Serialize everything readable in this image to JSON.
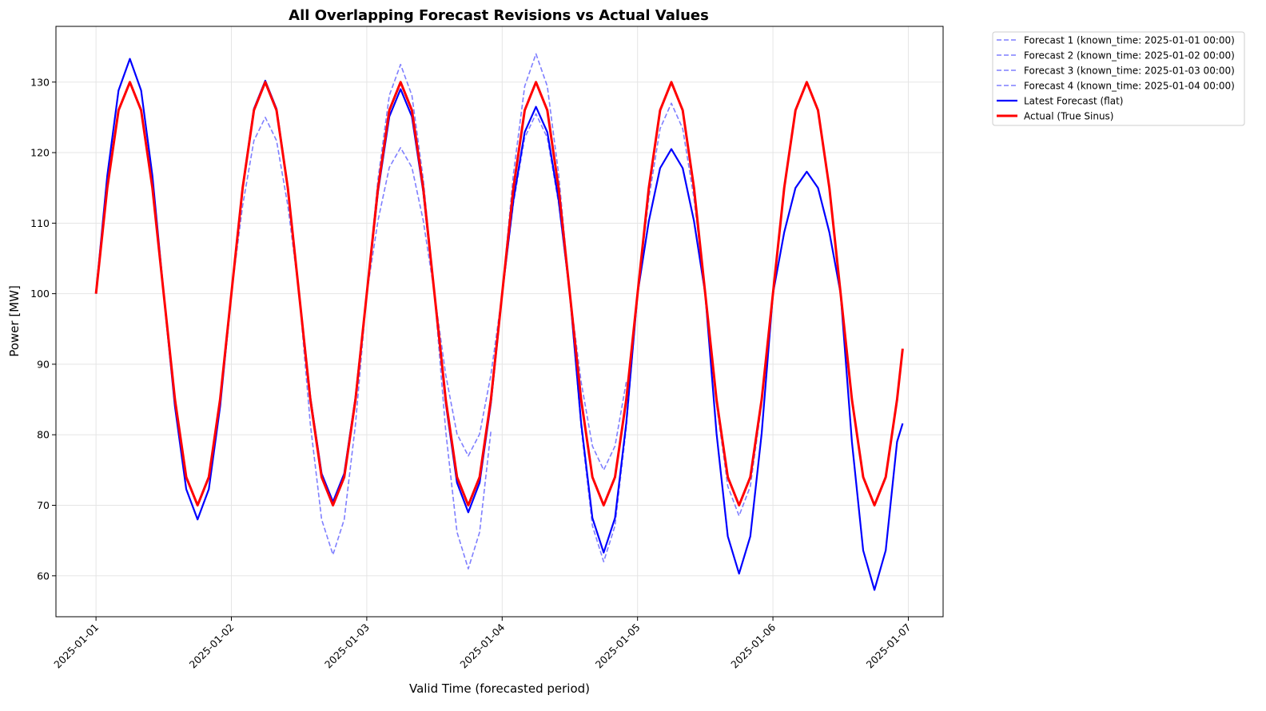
{
  "chart_data": {
    "type": "line",
    "title": "All Overlapping Forecast Revisions vs Actual Values",
    "xlabel": "Valid Time (forecasted period)",
    "ylabel": "Power [MW]",
    "xlim": [
      "2024-12-31 16:54",
      "2025-01-07 06:10"
    ],
    "ylim": [
      54.2,
      137.9
    ],
    "xticks": [
      "2025-01-01",
      "2025-01-02",
      "2025-01-03",
      "2025-01-04",
      "2025-01-05",
      "2025-01-06",
      "2025-01-07"
    ],
    "yticks": [
      60,
      70,
      80,
      90,
      100,
      110,
      120,
      130
    ],
    "grid": true,
    "legend_position": "outside-top-right",
    "x": [
      "2025-01-01 00:00",
      "2025-01-01 02:00",
      "2025-01-01 04:00",
      "2025-01-01 06:00",
      "2025-01-01 08:00",
      "2025-01-01 10:00",
      "2025-01-01 12:00",
      "2025-01-01 14:00",
      "2025-01-01 16:00",
      "2025-01-01 18:00",
      "2025-01-01 20:00",
      "2025-01-01 22:00",
      "2025-01-02 00:00",
      "2025-01-02 02:00",
      "2025-01-02 04:00",
      "2025-01-02 06:00",
      "2025-01-02 08:00",
      "2025-01-02 10:00",
      "2025-01-02 12:00",
      "2025-01-02 14:00",
      "2025-01-02 16:00",
      "2025-01-02 18:00",
      "2025-01-02 20:00",
      "2025-01-02 22:00",
      "2025-01-03 00:00",
      "2025-01-03 02:00",
      "2025-01-03 04:00",
      "2025-01-03 06:00",
      "2025-01-03 08:00",
      "2025-01-03 10:00",
      "2025-01-03 12:00",
      "2025-01-03 14:00",
      "2025-01-03 16:00",
      "2025-01-03 18:00",
      "2025-01-03 20:00",
      "2025-01-03 22:00",
      "2025-01-04 00:00",
      "2025-01-04 02:00",
      "2025-01-04 04:00",
      "2025-01-04 06:00",
      "2025-01-04 08:00",
      "2025-01-04 10:00",
      "2025-01-04 12:00",
      "2025-01-04 14:00",
      "2025-01-04 16:00",
      "2025-01-04 18:00",
      "2025-01-04 20:00",
      "2025-01-04 22:00",
      "2025-01-05 00:00",
      "2025-01-05 02:00",
      "2025-01-05 04:00",
      "2025-01-05 06:00",
      "2025-01-05 08:00",
      "2025-01-05 10:00",
      "2025-01-05 12:00",
      "2025-01-05 14:00",
      "2025-01-05 16:00",
      "2025-01-05 18:00",
      "2025-01-05 20:00",
      "2025-01-05 22:00",
      "2025-01-06 00:00",
      "2025-01-06 02:00",
      "2025-01-06 04:00",
      "2025-01-06 06:00",
      "2025-01-06 08:00",
      "2025-01-06 10:00",
      "2025-01-06 12:00",
      "2025-01-06 14:00",
      "2025-01-06 16:00",
      "2025-01-06 18:00",
      "2025-01-06 20:00",
      "2025-01-06 22:00",
      "2025-01-06 23:00"
    ],
    "series": [
      {
        "name": "Forecast 1 (known_time: 2025-01-01 00:00)",
        "color": "#7f7fff",
        "style": "dashed",
        "values": [
          100,
          116.7,
          128.8,
          133.3,
          128.8,
          116.7,
          100,
          84,
          72.3,
          68,
          72.3,
          84,
          100,
          112.5,
          121.7,
          125,
          121.7,
          112.5,
          100,
          81.5,
          68,
          63,
          68,
          81.5,
          100,
          110.4,
          117.9,
          120.7,
          117.9,
          110.4,
          100,
          80.5,
          66.2,
          61,
          66.2,
          80.5,
          null,
          null,
          null,
          null,
          null,
          null,
          null,
          null,
          null,
          null,
          null,
          null,
          null,
          null,
          null,
          null,
          null,
          null,
          null,
          null,
          null,
          null,
          null,
          null,
          null,
          null,
          null,
          null,
          null,
          null,
          null,
          null,
          null,
          null,
          null,
          null,
          null
        ]
      },
      {
        "name": "Forecast 2 (known_time: 2025-01-02 00:00)",
        "color": "#7f7fff",
        "style": "dashed",
        "values": [
          null,
          null,
          null,
          null,
          null,
          null,
          null,
          null,
          null,
          null,
          null,
          null,
          100,
          115.1,
          126.2,
          130.2,
          126.2,
          115.1,
          100,
          85.3,
          74.5,
          70.5,
          74.5,
          85.3,
          100,
          116.3,
          128.1,
          132.5,
          128.1,
          116.3,
          100,
          88.5,
          80.1,
          77,
          80.1,
          88.5,
          100,
          117,
          129.4,
          134,
          129.4,
          117,
          100,
          87.5,
          78.4,
          75,
          78.4,
          87.5,
          null,
          null,
          null,
          null,
          null,
          null,
          null,
          null,
          null,
          null,
          null,
          null,
          null,
          null,
          null,
          null,
          null,
          null,
          null,
          null,
          null,
          null,
          null,
          null,
          null
        ]
      },
      {
        "name": "Forecast 3 (known_time: 2025-01-03 00:00)",
        "color": "#7f7fff",
        "style": "dashed",
        "values": [
          null,
          null,
          null,
          null,
          null,
          null,
          null,
          null,
          null,
          null,
          null,
          null,
          null,
          null,
          null,
          null,
          null,
          null,
          null,
          null,
          null,
          null,
          null,
          null,
          100,
          114.5,
          125.1,
          129,
          125.1,
          114.5,
          100,
          84.5,
          73.2,
          69,
          73.2,
          84.5,
          100,
          112.8,
          122.1,
          125.5,
          122.1,
          112.8,
          100,
          81,
          67.1,
          62,
          67.1,
          81,
          100,
          113.5,
          123.4,
          127,
          123.4,
          113.5,
          100,
          84.3,
          72.7,
          68.5,
          72.7,
          84.3,
          null,
          null,
          null,
          null,
          null,
          null,
          null,
          null,
          null,
          null,
          null,
          null,
          null
        ]
      },
      {
        "name": "Forecast 4 (known_time: 2025-01-04 00:00)",
        "color": "#7f7fff",
        "style": "dashed",
        "values": [
          null,
          null,
          null,
          null,
          null,
          null,
          null,
          null,
          null,
          null,
          null,
          null,
          null,
          null,
          null,
          null,
          null,
          null,
          null,
          null,
          null,
          null,
          null,
          null,
          null,
          null,
          null,
          null,
          null,
          null,
          null,
          null,
          null,
          null,
          null,
          null,
          100,
          113.3,
          122.9,
          126.5,
          122.9,
          113.3,
          100,
          81.7,
          68.2,
          63.3,
          68.2,
          81.7,
          100,
          110.3,
          117.8,
          120.5,
          117.8,
          110.3,
          100,
          80.2,
          65.6,
          60.3,
          65.6,
          80.2,
          100,
          108.7,
          115,
          117.3,
          115,
          108.7,
          100,
          79,
          63.6,
          58,
          63.6,
          79,
          81.6
        ]
      },
      {
        "name": "Latest Forecast (flat)",
        "color": "#0000ff",
        "style": "solid",
        "values": [
          100,
          116.7,
          128.8,
          133.3,
          128.8,
          116.7,
          100,
          84,
          72.3,
          68,
          72.3,
          84,
          100,
          115.1,
          126.2,
          130.2,
          126.2,
          115.1,
          100,
          85.3,
          74.5,
          70.5,
          74.5,
          85.3,
          100,
          114.5,
          125.1,
          129,
          125.1,
          114.5,
          100,
          84.5,
          73.2,
          69,
          73.2,
          84.5,
          100,
          113.3,
          122.9,
          126.5,
          122.9,
          113.3,
          100,
          81.7,
          68.2,
          63.3,
          68.2,
          81.7,
          100,
          110.3,
          117.8,
          120.5,
          117.8,
          110.3,
          100,
          80.2,
          65.6,
          60.3,
          65.6,
          80.2,
          100,
          108.7,
          115,
          117.3,
          115,
          108.7,
          100,
          79,
          63.6,
          58,
          63.6,
          79,
          81.6
        ]
      },
      {
        "name": "Actual (True Sinus)",
        "color": "#ff0000",
        "style": "solid",
        "values": [
          100,
          115,
          126,
          130,
          126,
          115,
          100,
          85,
          74,
          70,
          74,
          85,
          100,
          115,
          126,
          130,
          126,
          115,
          100,
          85,
          74,
          70,
          74,
          85,
          100,
          115,
          126,
          130,
          126,
          115,
          100,
          85,
          74,
          70,
          74,
          85,
          100,
          115,
          126,
          130,
          126,
          115,
          100,
          85,
          74,
          70,
          74,
          85,
          100,
          115,
          126,
          130,
          126,
          115,
          100,
          85,
          74,
          70,
          74,
          85,
          100,
          115,
          126,
          130,
          126,
          115,
          100,
          85,
          74,
          70,
          74,
          85,
          92.2
        ]
      }
    ]
  }
}
